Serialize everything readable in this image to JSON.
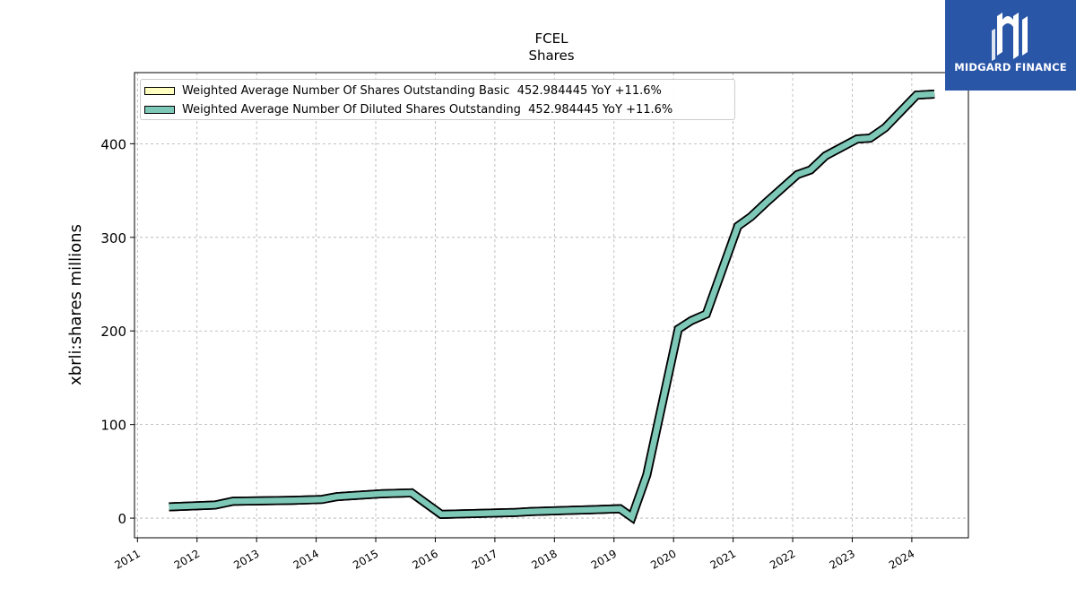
{
  "chart_data": {
    "type": "line",
    "title": "FCEL",
    "subtitle": "Shares",
    "ylabel": "xbrli:shares millions",
    "xlabel": "",
    "xlim": [
      2010.95,
      2024.95
    ],
    "ylim": [
      -21,
      476
    ],
    "yticks": [
      0,
      100,
      200,
      300,
      400
    ],
    "xticks": [
      "2011",
      "2012",
      "2013",
      "2014",
      "2015",
      "2016",
      "2017",
      "2018",
      "2019",
      "2020",
      "2021",
      "2022",
      "2023",
      "2024"
    ],
    "grid": true,
    "legend_position": "top-left",
    "series": [
      {
        "name": "Weighted Average Number Of Shares Outstanding Basic  452.984445 YoY +11.6%",
        "color": "#ffffc0",
        "points": [
          [
            2011.53,
            12
          ],
          [
            2012.3,
            14
          ],
          [
            2012.6,
            18
          ],
          [
            2013.6,
            19
          ],
          [
            2014.1,
            20
          ],
          [
            2014.35,
            23
          ],
          [
            2015.1,
            26
          ],
          [
            2015.6,
            27
          ],
          [
            2016.1,
            4
          ],
          [
            2017.35,
            6
          ],
          [
            2017.6,
            7
          ],
          [
            2018.6,
            9
          ],
          [
            2019.1,
            10
          ],
          [
            2019.3,
            1
          ],
          [
            2019.55,
            46
          ],
          [
            2020.08,
            202
          ],
          [
            2020.3,
            211
          ],
          [
            2020.55,
            218
          ],
          [
            2021.08,
            312
          ],
          [
            2021.3,
            322
          ],
          [
            2021.55,
            337
          ],
          [
            2022.08,
            367
          ],
          [
            2022.3,
            372
          ],
          [
            2022.55,
            387
          ],
          [
            2023.08,
            405
          ],
          [
            2023.3,
            406
          ],
          [
            2023.55,
            417
          ],
          [
            2024.08,
            452
          ],
          [
            2024.38,
            453
          ]
        ]
      },
      {
        "name": "Weighted Average Number Of Diluted Shares Outstanding  452.984445 YoY +11.6%",
        "color": "#7ec8b8",
        "points": [
          [
            2011.53,
            12
          ],
          [
            2012.3,
            14
          ],
          [
            2012.6,
            18
          ],
          [
            2013.6,
            19
          ],
          [
            2014.1,
            20
          ],
          [
            2014.35,
            23
          ],
          [
            2015.1,
            26
          ],
          [
            2015.6,
            27
          ],
          [
            2016.1,
            4
          ],
          [
            2017.35,
            6
          ],
          [
            2017.6,
            7
          ],
          [
            2018.6,
            9
          ],
          [
            2019.1,
            10
          ],
          [
            2019.3,
            1
          ],
          [
            2019.55,
            46
          ],
          [
            2020.08,
            202
          ],
          [
            2020.3,
            211
          ],
          [
            2020.55,
            218
          ],
          [
            2021.08,
            312
          ],
          [
            2021.3,
            322
          ],
          [
            2021.55,
            337
          ],
          [
            2022.08,
            367
          ],
          [
            2022.3,
            372
          ],
          [
            2022.55,
            387
          ],
          [
            2023.08,
            405
          ],
          [
            2023.3,
            406
          ],
          [
            2023.55,
            417
          ],
          [
            2024.08,
            452
          ],
          [
            2024.38,
            453
          ]
        ]
      }
    ]
  },
  "logo": {
    "text": "MIDGARD FINANCE",
    "background": "#2a56a8"
  }
}
